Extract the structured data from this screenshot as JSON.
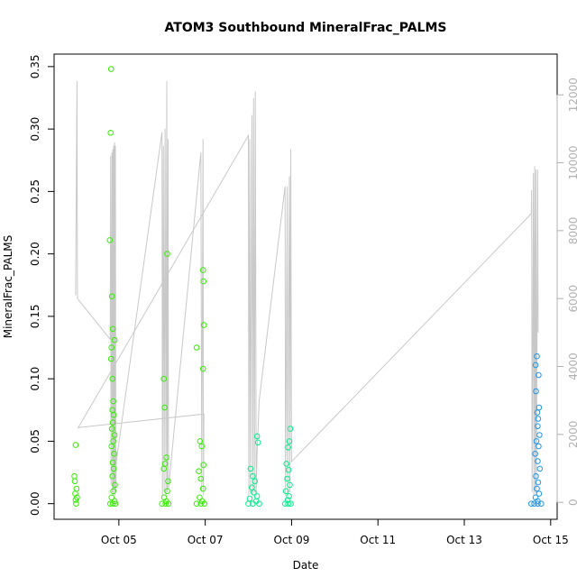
{
  "chart_data": {
    "type": "scatter",
    "title": "ATOM3 Southbound MineralFrac_PALMS",
    "xlabel": "Date",
    "ylabel": "MineralFrac_PALMS",
    "x_ticks": [
      "Oct 05",
      "Oct 07",
      "Oct 09",
      "Oct 11",
      "Oct 13",
      "Oct 15"
    ],
    "xlim": [
      3.5,
      15.15
    ],
    "ylim": [
      -0.0125,
      0.36
    ],
    "y_ticks": [
      "0.00",
      "0.05",
      "0.10",
      "0.15",
      "0.20",
      "0.25",
      "0.30",
      "0.35"
    ],
    "y2_ticks": [
      "0",
      "2000",
      "4000",
      "6000",
      "8000",
      "10000",
      "12000"
    ],
    "y2lim": [
      -500,
      13200
    ],
    "grid": false,
    "legend": "none",
    "colors": {
      "point_early": "#33ee00",
      "point_mid": "#00ee88",
      "point_late": "#1e96e8",
      "altitude_line": "#c8c8c8"
    },
    "series": [
      {
        "points": [
          [
            4.0,
            0.047
          ],
          [
            3.97,
            0.022
          ],
          [
            3.98,
            0.018
          ],
          [
            4.02,
            0.012
          ],
          [
            3.99,
            0.008
          ],
          [
            4.03,
            0.005
          ],
          [
            4.0,
            0.003
          ],
          [
            4.01,
            0.0
          ],
          [
            4.82,
            0.348
          ],
          [
            4.81,
            0.297
          ],
          [
            4.79,
            0.211
          ],
          [
            4.84,
            0.166
          ],
          [
            4.86,
            0.14
          ],
          [
            4.9,
            0.131
          ],
          [
            4.83,
            0.125
          ],
          [
            4.82,
            0.116
          ],
          [
            4.85,
            0.1
          ],
          [
            4.87,
            0.082
          ],
          [
            4.85,
            0.075
          ],
          [
            4.88,
            0.071
          ],
          [
            4.86,
            0.065
          ],
          [
            4.84,
            0.06
          ],
          [
            4.9,
            0.055
          ],
          [
            4.87,
            0.05
          ],
          [
            4.83,
            0.046
          ],
          [
            4.89,
            0.04
          ],
          [
            4.86,
            0.033
          ],
          [
            4.88,
            0.028
          ],
          [
            4.85,
            0.022
          ],
          [
            4.91,
            0.015
          ],
          [
            4.87,
            0.01
          ],
          [
            4.83,
            0.005
          ],
          [
            4.9,
            0.002
          ],
          [
            4.8,
            0.0
          ],
          [
            4.92,
            0.0
          ],
          [
            4.86,
            0.0
          ],
          [
            6.04,
            0.1
          ],
          [
            6.06,
            0.077
          ],
          [
            6.12,
            0.2
          ],
          [
            6.1,
            0.037
          ],
          [
            6.07,
            0.032
          ],
          [
            6.04,
            0.028
          ],
          [
            6.14,
            0.018
          ],
          [
            6.12,
            0.01
          ],
          [
            6.05,
            0.005
          ],
          [
            6.1,
            0.002
          ],
          [
            6.0,
            0.0
          ],
          [
            6.15,
            0.0
          ],
          [
            6.08,
            0.0
          ],
          [
            6.8,
            0.125
          ],
          [
            6.95,
            0.187
          ],
          [
            6.96,
            0.178
          ],
          [
            6.97,
            0.143
          ],
          [
            6.95,
            0.108
          ],
          [
            6.88,
            0.05
          ],
          [
            6.92,
            0.046
          ],
          [
            6.96,
            0.031
          ],
          [
            6.85,
            0.026
          ],
          [
            6.9,
            0.02
          ],
          [
            6.95,
            0.012
          ],
          [
            6.87,
            0.005
          ],
          [
            6.93,
            0.002
          ],
          [
            6.8,
            0.0
          ],
          [
            6.98,
            0.0
          ],
          [
            6.9,
            0.0
          ]
        ]
      },
      {
        "points": [
          [
            8.2,
            0.054
          ],
          [
            8.22,
            0.049
          ],
          [
            8.05,
            0.028
          ],
          [
            8.1,
            0.022
          ],
          [
            8.15,
            0.018
          ],
          [
            8.08,
            0.013
          ],
          [
            8.12,
            0.009
          ],
          [
            8.2,
            0.006
          ],
          [
            8.03,
            0.004
          ],
          [
            8.18,
            0.002
          ],
          [
            8.0,
            0.0
          ],
          [
            8.1,
            0.0
          ],
          [
            8.25,
            0.0
          ],
          [
            8.97,
            0.06
          ],
          [
            8.95,
            0.05
          ],
          [
            8.92,
            0.045
          ],
          [
            8.88,
            0.032
          ],
          [
            8.93,
            0.027
          ],
          [
            8.9,
            0.02
          ],
          [
            8.96,
            0.015
          ],
          [
            8.87,
            0.01
          ],
          [
            8.94,
            0.006
          ],
          [
            8.91,
            0.003
          ],
          [
            8.85,
            0.0
          ],
          [
            8.98,
            0.0
          ],
          [
            8.92,
            0.0
          ]
        ]
      },
      {
        "points": [
          [
            14.68,
            0.118
          ],
          [
            14.65,
            0.111
          ],
          [
            14.72,
            0.103
          ],
          [
            14.66,
            0.09
          ],
          [
            14.73,
            0.077
          ],
          [
            14.69,
            0.073
          ],
          [
            14.71,
            0.068
          ],
          [
            14.7,
            0.062
          ],
          [
            14.74,
            0.055
          ],
          [
            14.67,
            0.05
          ],
          [
            14.72,
            0.046
          ],
          [
            14.64,
            0.04
          ],
          [
            14.7,
            0.034
          ],
          [
            14.75,
            0.028
          ],
          [
            14.66,
            0.022
          ],
          [
            14.71,
            0.017
          ],
          [
            14.68,
            0.012
          ],
          [
            14.73,
            0.008
          ],
          [
            14.65,
            0.005
          ],
          [
            14.7,
            0.002
          ],
          [
            14.55,
            0.0
          ],
          [
            14.62,
            0.0
          ],
          [
            14.7,
            0.0
          ],
          [
            14.78,
            0.0
          ]
        ]
      }
    ],
    "altitude": {
      "note_axis": "right",
      "path": [
        [
          4.0,
          6100
        ],
        [
          4.03,
          12400
        ],
        [
          4.04,
          6000
        ],
        [
          4.8,
          4800
        ],
        [
          4.81,
          10200
        ],
        [
          4.82,
          500
        ],
        [
          4.84,
          10300
        ],
        [
          4.85,
          300
        ],
        [
          4.86,
          10400
        ],
        [
          4.87,
          200
        ],
        [
          4.88,
          10500
        ],
        [
          4.89,
          400
        ],
        [
          4.9,
          10600
        ],
        [
          4.91,
          200
        ],
        [
          4.92,
          10500
        ],
        [
          4.93,
          300
        ],
        [
          4.94,
          1200
        ],
        [
          6.0,
          10900
        ],
        [
          6.01,
          200
        ],
        [
          6.03,
          10500
        ],
        [
          6.05,
          300
        ],
        [
          6.07,
          11000
        ],
        [
          6.09,
          200
        ],
        [
          6.11,
          12400
        ],
        [
          6.12,
          300
        ],
        [
          6.14,
          10700
        ],
        [
          6.15,
          400
        ],
        [
          6.9,
          10300
        ],
        [
          6.92,
          300
        ],
        [
          6.95,
          10700
        ],
        [
          6.96,
          200
        ],
        [
          6.97,
          2600
        ],
        [
          4.06,
          2200
        ],
        [
          8.0,
          10800
        ],
        [
          8.01,
          200
        ],
        [
          8.03,
          10700
        ],
        [
          8.05,
          300
        ],
        [
          8.08,
          11400
        ],
        [
          8.1,
          200
        ],
        [
          8.12,
          11900
        ],
        [
          8.14,
          300
        ],
        [
          8.16,
          12100
        ],
        [
          8.18,
          200
        ],
        [
          8.2,
          1400
        ],
        [
          8.25,
          3000
        ],
        [
          8.85,
          9300
        ],
        [
          8.86,
          200
        ],
        [
          8.9,
          9300
        ],
        [
          8.91,
          200
        ],
        [
          8.95,
          9600
        ],
        [
          8.96,
          300
        ],
        [
          8.98,
          10400
        ],
        [
          9.0,
          1200
        ],
        [
          14.55,
          8500
        ],
        [
          14.56,
          9200
        ],
        [
          14.57,
          300
        ],
        [
          14.6,
          9700
        ],
        [
          14.61,
          200
        ],
        [
          14.63,
          9900
        ],
        [
          14.64,
          300
        ],
        [
          14.66,
          9800
        ],
        [
          14.67,
          200
        ],
        [
          14.7,
          9800
        ],
        [
          14.71,
          5000
        ]
      ]
    }
  }
}
